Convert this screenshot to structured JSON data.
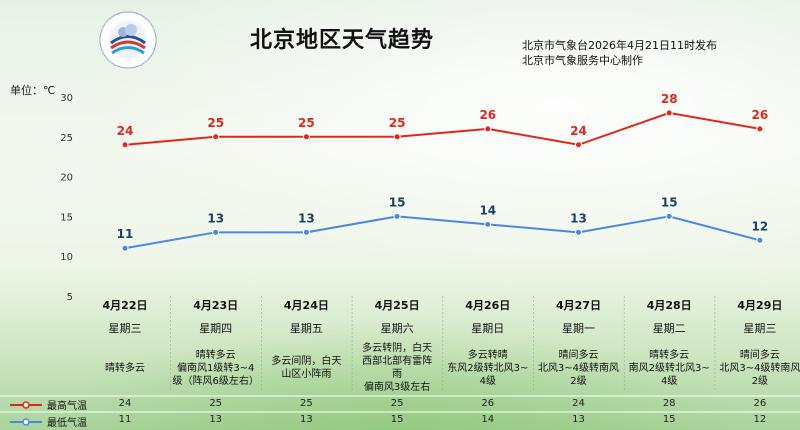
{
  "header": {
    "title": "北京地区天气趋势",
    "publisher_line1": "北京市气象台2026年4月21日11时发布",
    "publisher_line2": "北京市气象服务中心制作",
    "unit_label": "单位：℃"
  },
  "colors": {
    "high": "#e2261b",
    "low": "#4a86e8"
  },
  "chart_data": {
    "type": "line",
    "categories": [
      "4月22日",
      "4月23日",
      "4月24日",
      "4月25日",
      "4月26日",
      "4月27日",
      "4月28日",
      "4月29日"
    ],
    "weekdays": [
      "星期三",
      "星期四",
      "星期五",
      "星期六",
      "星期日",
      "星期一",
      "星期二",
      "星期三"
    ],
    "descriptions": [
      "晴转多云",
      "晴转多云\n偏南风1级转3~4\n级（阵风6级左右）",
      "多云间阴，白天\n山区小阵雨",
      "多云转阴，白天\n西部北部有雷阵\n雨\n偏南风3级左右",
      "多云转晴\n东风2级转北风3~\n4级",
      "晴间多云\n北风3~4级转南风\n2级",
      "晴转多云\n南风2级转北风3~\n4级",
      "晴间多云\n北风3~4级转南风\n2级"
    ],
    "series": [
      {
        "name": "最高气温",
        "values": [
          24,
          25,
          25,
          25,
          26,
          24,
          28,
          26
        ]
      },
      {
        "name": "最低气温",
        "values": [
          11,
          13,
          13,
          15,
          14,
          13,
          15,
          12
        ]
      }
    ],
    "ylim": [
      5,
      30
    ],
    "yticks": [
      5,
      10,
      15,
      20,
      25,
      30
    ],
    "grid": false,
    "legend_position": "bottom-left"
  }
}
